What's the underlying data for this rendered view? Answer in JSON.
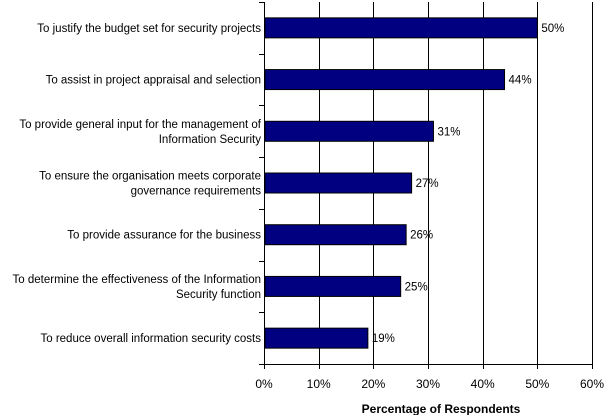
{
  "chart_data": {
    "type": "bar",
    "orientation": "horizontal",
    "categories": [
      [
        "To justify the budget set for security projects"
      ],
      [
        "To assist in project appraisal and selection"
      ],
      [
        "To provide general input for the management of",
        "Information Security"
      ],
      [
        "To ensure the organisation meets corporate",
        "governance requirements"
      ],
      [
        "To provide assurance for the business"
      ],
      [
        "To determine the effectiveness of the Information",
        "Security function"
      ],
      [
        "To reduce overall information security costs"
      ]
    ],
    "values": [
      50,
      44,
      31,
      27,
      26,
      25,
      19
    ],
    "value_labels": [
      "50%",
      "44%",
      "31%",
      "27%",
      "26%",
      "25%",
      "19%"
    ],
    "xlim": [
      0,
      60
    ],
    "xticks": [
      0,
      10,
      20,
      30,
      40,
      50,
      60
    ],
    "xtick_labels": [
      "0%",
      "10%",
      "20%",
      "30%",
      "40%",
      "50%",
      "60%"
    ],
    "xlabel": "Percentage of Respondents",
    "ylabel": "",
    "title": "",
    "grid": "vertical",
    "legend": "none",
    "colors": {
      "bar": "#000080",
      "bar_edge": "#000000",
      "grid": "#000000",
      "axis": "#000000"
    }
  }
}
